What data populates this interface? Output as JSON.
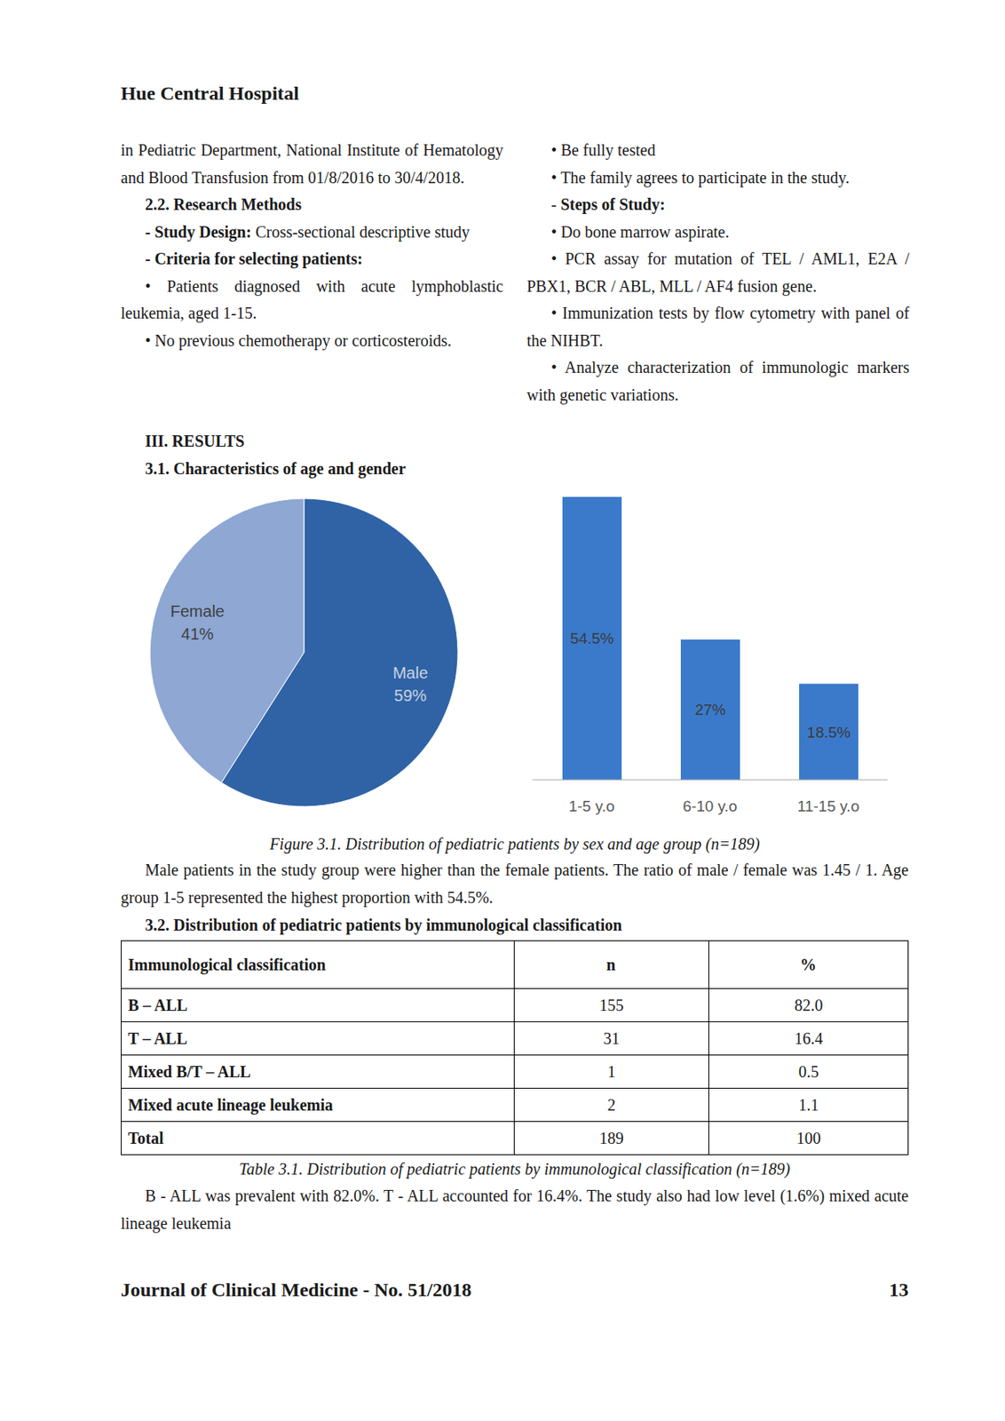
{
  "header": {
    "title": "Hue Central Hospital"
  },
  "columns": [
    [
      {
        "indent": false,
        "segments": [
          {
            "text": "in Pediatric Department, National Institute of Hematology and Blood Transfusion from 01/8/2016 to 30/4/2018."
          }
        ]
      },
      {
        "segments": [
          {
            "text": "2.2. Research Methods",
            "bold": true
          }
        ]
      },
      {
        "segments": [
          {
            "text": "- Study Design:",
            "bold": true
          },
          {
            "text": " Cross-sectional descriptive study"
          }
        ]
      },
      {
        "segments": [
          {
            "text": "- Criteria for selecting patients:",
            "bold": true
          }
        ]
      },
      {
        "segments": [
          {
            "text": "• Patients diagnosed with acute lymphoblastic leukemia, aged 1-15."
          }
        ]
      },
      {
        "segments": [
          {
            "text": "• No previous chemotherapy or corticosteroids."
          }
        ]
      }
    ],
    [
      {
        "segments": [
          {
            "text": "• Be fully tested"
          }
        ]
      },
      {
        "segments": [
          {
            "text": "• The family agrees to participate in the study."
          }
        ]
      },
      {
        "segments": [
          {
            "text": "- "
          },
          {
            "text": "Steps of Study:",
            "bold": true
          }
        ]
      },
      {
        "segments": [
          {
            "text": "• Do bone marrow aspirate."
          }
        ]
      },
      {
        "segments": [
          {
            "text": "• PCR assay for mutation of TEL / AML1, E2A / PBX1, BCR / ABL, MLL / AF4 fusion gene."
          }
        ]
      },
      {
        "segments": [
          {
            "text": "• Immunization tests by flow cytometry with panel of the NIHBT."
          }
        ]
      },
      {
        "segments": [
          {
            "text": "• Analyze characterization of immunologic markers with genetic variations."
          }
        ]
      }
    ]
  ],
  "section": {
    "title": "III. RESULTS",
    "subtitle": "3.1. Characteristics of age and gender"
  },
  "chart_data": [
    {
      "type": "pie",
      "categories": [
        "Male",
        "Female"
      ],
      "values": [
        59,
        41
      ],
      "value_labels": [
        "59%",
        "41%"
      ],
      "colors": [
        "#2f63a6",
        "#8ea7d3"
      ],
      "data_labels": true
    },
    {
      "type": "bar",
      "categories": [
        "1-5 y.o",
        "6-10 y.o",
        "11-15 y.o"
      ],
      "values": [
        54.5,
        27,
        18.5
      ],
      "value_labels": [
        "54.5%",
        "27%",
        "18.5%"
      ],
      "color": "#3b7acb",
      "data_labels": true,
      "tick_labels": "x"
    }
  ],
  "figure_caption": "Figure 3.1. Distribution of pediatric patients by sex and age group (n=189)",
  "figure_text": "Male patients in the study group were higher than the female patients. The ratio of male / female was 1.45 / 1. Age group 1-5 represented the highest proportion with 54.5%.",
  "table_heading": "3.2. Distribution of pediatric patients by immunological classification",
  "table": {
    "header": [
      "Immunological classification",
      "n",
      "%"
    ],
    "rows": [
      [
        "B – ALL",
        "155",
        "82.0"
      ],
      [
        "T – ALL",
        "31",
        "16.4"
      ],
      [
        "Mixed B/T – ALL",
        "1",
        "0.5"
      ],
      [
        "Mixed acute lineage leukemia",
        "2",
        "1.1"
      ],
      [
        "Total",
        "189",
        "100"
      ]
    ],
    "caption": "Table 3.1. Distribution of pediatric patients by immunological classification (n=189)",
    "text": "B - ALL was prevalent with 82.0%. T - ALL accounted for 16.4%. The study also had low level (1.6%) mixed acute lineage leukemia"
  },
  "footer": {
    "journal": "Journal of Clinical Medicine - No. 51/2018",
    "page": "13"
  }
}
